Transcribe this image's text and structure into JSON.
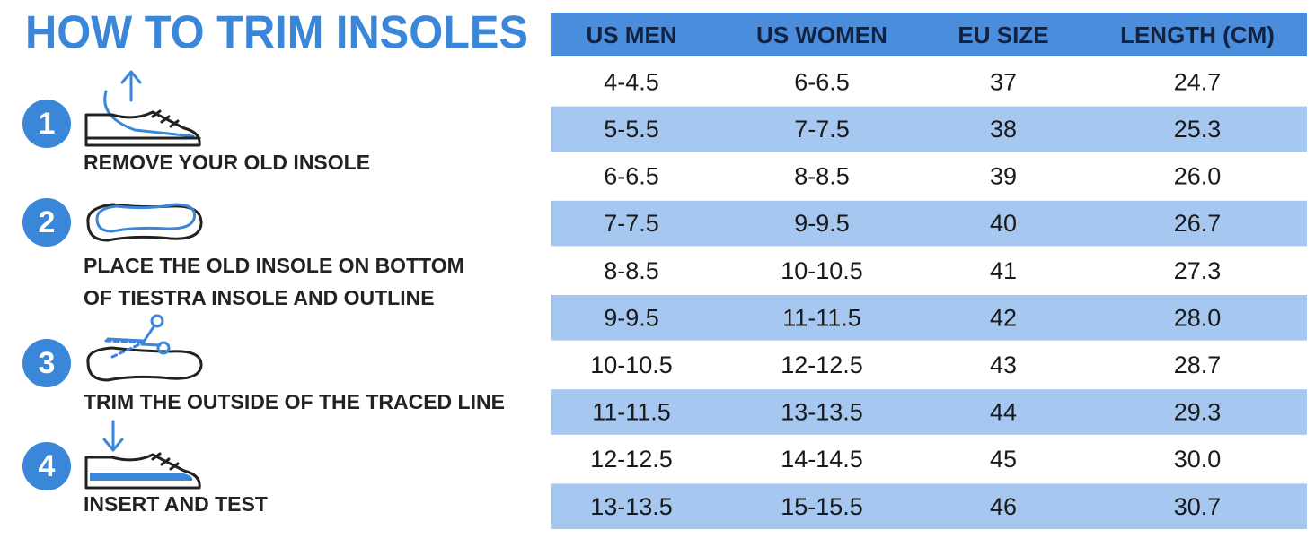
{
  "title": "HOW TO TRIM INSOLES",
  "steps": [
    {
      "number": "1",
      "lines": [
        "REMOVE YOUR OLD INSOLE"
      ]
    },
    {
      "number": "2",
      "lines": [
        "PLACE THE OLD INSOLE ON BOTTOM",
        "OF TIESTRA INSOLE AND OUTLINE"
      ]
    },
    {
      "number": "3",
      "lines": [
        "TRIM THE OUTSIDE OF THE TRACED LINE"
      ]
    },
    {
      "number": "4",
      "lines": [
        "INSERT AND TEST"
      ]
    }
  ],
  "table": {
    "headers": [
      "US MEN",
      "US WOMEN",
      "EU SIZE",
      "LENGTH (CM)"
    ],
    "rows": [
      [
        "4-4.5",
        "6-6.5",
        "37",
        "24.7"
      ],
      [
        "5-5.5",
        "7-7.5",
        "38",
        "25.3"
      ],
      [
        "6-6.5",
        "8-8.5",
        "39",
        "26.0"
      ],
      [
        "7-7.5",
        "9-9.5",
        "40",
        "26.7"
      ],
      [
        "8-8.5",
        "10-10.5",
        "41",
        "27.3"
      ],
      [
        "9-9.5",
        "11-11.5",
        "42",
        "28.0"
      ],
      [
        "10-10.5",
        "12-12.5",
        "43",
        "28.7"
      ],
      [
        "11-11.5",
        "13-13.5",
        "44",
        "29.3"
      ],
      [
        "12-12.5",
        "14-14.5",
        "45",
        "30.0"
      ],
      [
        "13-13.5",
        "15-15.5",
        "46",
        "30.7"
      ]
    ]
  }
}
